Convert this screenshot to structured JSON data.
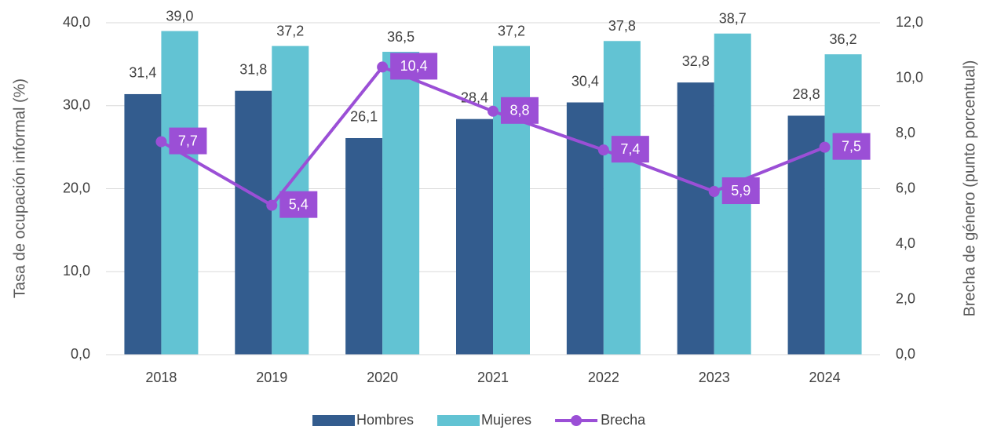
{
  "chart_data": {
    "type": "bar",
    "y_label": "Tasa de ocupación  informal (%)",
    "y2_label": "Brecha de género (punto porcentual)",
    "categories": [
      "2018",
      "2019",
      "2020",
      "2021",
      "2022",
      "2023",
      "2024"
    ],
    "series": [
      {
        "name": "Hombres",
        "color": "#335c8e",
        "values": [
          31.4,
          31.8,
          26.1,
          28.4,
          30.4,
          32.8,
          28.8
        ],
        "value_labels": [
          "31,4",
          "31,8",
          "26,1",
          "28,4",
          "30,4",
          "32,8",
          "28,8"
        ]
      },
      {
        "name": "Mujeres",
        "color": "#62c3d3",
        "values": [
          39.0,
          37.2,
          36.5,
          37.2,
          37.8,
          38.7,
          36.2
        ],
        "value_labels": [
          "39,0",
          "37,2",
          "36,5",
          "37,2",
          "37,8",
          "38,7",
          "36,2"
        ]
      },
      {
        "name": "Brecha",
        "color": "#9b4fd6",
        "type": "line",
        "axis": "y2",
        "values": [
          7.7,
          5.4,
          10.4,
          8.8,
          7.4,
          5.9,
          7.5
        ],
        "value_labels": [
          "7,7",
          "5,4",
          "10,4",
          "8,8",
          "7,4",
          "5,9",
          "7,5"
        ]
      }
    ],
    "ylim": [
      0,
      40
    ],
    "yticks": [
      {
        "value": 0,
        "label": "0,0"
      },
      {
        "value": 10,
        "label": "10,0"
      },
      {
        "value": 20,
        "label": "20,0"
      },
      {
        "value": 30,
        "label": "30,0"
      },
      {
        "value": 40,
        "label": "40,0"
      }
    ],
    "y2lim": [
      0,
      12
    ],
    "y2ticks": [
      {
        "value": 0,
        "label": "0,0"
      },
      {
        "value": 2,
        "label": "2,0"
      },
      {
        "value": 4,
        "label": "4,0"
      },
      {
        "value": 6,
        "label": "6,0"
      },
      {
        "value": 8,
        "label": "8,0"
      },
      {
        "value": 10,
        "label": "10,0"
      },
      {
        "value": 12,
        "label": "12,0"
      }
    ],
    "grid": true,
    "legend": "bottom"
  }
}
